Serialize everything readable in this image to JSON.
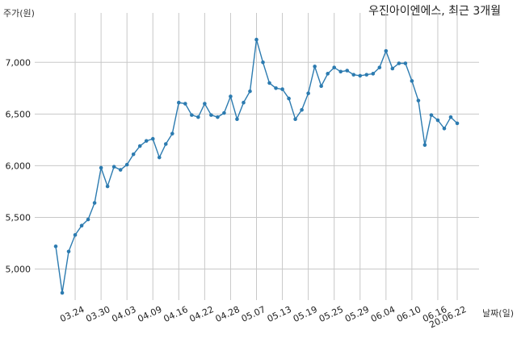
{
  "chart_data": {
    "type": "line",
    "title": "우진아이엔에스, 최근 3개월",
    "ylabel": "주가(원)",
    "xlabel": "날짜(일)",
    "ylim": [
      4700,
      7400
    ],
    "yticks": [
      5000,
      5500,
      6000,
      6500,
      7000
    ],
    "ytick_labels": [
      "5,000",
      "5,500",
      "6,000",
      "6,500",
      "7,000"
    ],
    "xtick_labels": [
      "03.24",
      "03.30",
      "04.03",
      "04.09",
      "04.16",
      "04.22",
      "04.28",
      "05.07",
      "05.13",
      "05.19",
      "05.25",
      "05.29",
      "06.04",
      "06.10",
      "06.16",
      "20.06.22"
    ],
    "xtick_index": [
      3,
      7,
      11,
      15,
      19,
      23,
      27,
      31,
      35,
      39,
      43,
      47,
      51,
      55,
      59,
      62
    ],
    "grid": true,
    "line_color": "#2c7bb0",
    "series": [
      {
        "values": [
          5220,
          4770,
          5170,
          5330,
          5420,
          5480,
          5640,
          5980,
          5800,
          5990,
          5960,
          6010,
          6110,
          6190,
          6240,
          6260,
          6080,
          6210,
          6310,
          6610,
          6600,
          6490,
          6470,
          6600,
          6490,
          6470,
          6510,
          6670,
          6450,
          6610,
          6720,
          7220,
          7000,
          6800,
          6750,
          6740,
          6650,
          6450,
          6540,
          6700,
          6960,
          6770,
          6890,
          6950,
          6910,
          6920,
          6880,
          6870,
          6880,
          6890,
          6950,
          7110,
          6940,
          6990,
          6990,
          6820,
          6630,
          6200,
          6490,
          6440,
          6360,
          6470,
          6410
        ]
      }
    ]
  }
}
